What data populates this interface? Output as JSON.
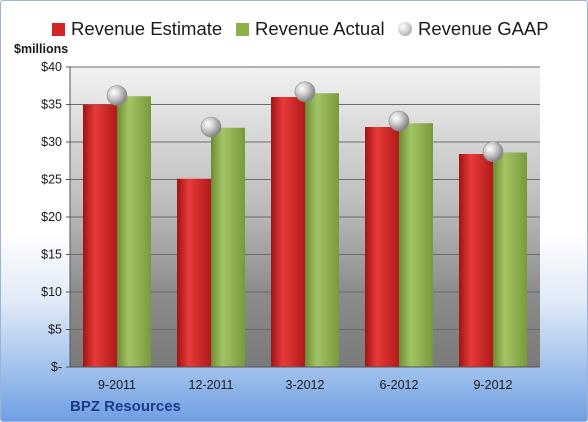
{
  "company": "BPZ Resources",
  "chart_data": {
    "type": "bar",
    "unit_label": "$millions",
    "categories": [
      "9-2011",
      "12-2011",
      "3-2012",
      "6-2012",
      "9-2012"
    ],
    "series": [
      {
        "name": "Revenue Estimate",
        "color": "#d42424",
        "values": [
          35.0,
          25.1,
          36.0,
          32.0,
          28.4
        ]
      },
      {
        "name": "Revenue Actual",
        "color": "#8db04a",
        "values": [
          36.1,
          31.9,
          36.5,
          32.5,
          28.6
        ]
      },
      {
        "name": "Revenue GAAP",
        "color": "#b8b8b8",
        "values": [
          36.2,
          32.0,
          36.7,
          32.8,
          28.7
        ]
      }
    ],
    "ylim": [
      0,
      40
    ],
    "yticks": [
      0,
      5,
      10,
      15,
      20,
      25,
      30,
      35,
      40
    ],
    "ytick_labels": [
      "$-",
      "$5",
      "$10",
      "$15",
      "$20",
      "$25",
      "$30",
      "$35",
      "$40"
    ],
    "grid": true,
    "legend_position": "top"
  }
}
